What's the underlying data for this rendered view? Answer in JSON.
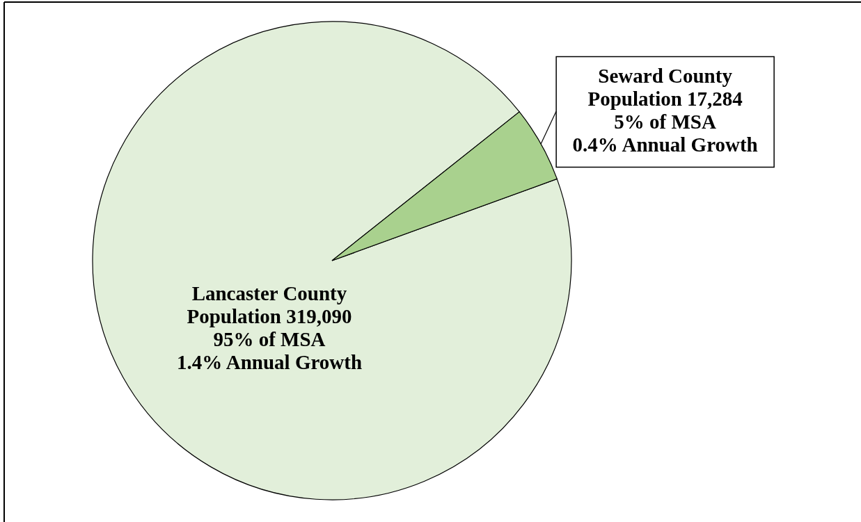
{
  "chart_data": {
    "type": "pie",
    "categories": [
      "Lancaster County",
      "Seward County"
    ],
    "values": [
      319090,
      17284
    ],
    "colors": [
      "#e2efda",
      "#a9d18e"
    ],
    "value_labels": [
      "Population 319,090",
      "Population 17,284"
    ],
    "annotations": [
      {
        "text": "95% of MSA",
        "x": "Lancaster County"
      },
      {
        "text": "1.4% Annual Growth",
        "x": "Lancaster County"
      },
      {
        "text": "5% of MSA",
        "x": "Seward County"
      },
      {
        "text": "0.4% Annual Growth",
        "x": "Seward County"
      }
    ]
  }
}
